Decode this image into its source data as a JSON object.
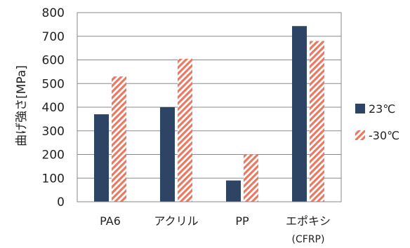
{
  "chart_data": {
    "type": "bar",
    "categories": [
      "PA6",
      "アクリル",
      "PP",
      "エポキシ"
    ],
    "category_sublabels": [
      "",
      "",
      "",
      "(CFRP)"
    ],
    "series": [
      {
        "name": "23℃",
        "values": [
          370,
          400,
          90,
          743
        ],
        "color": "#2d4464",
        "fill": "solid"
      },
      {
        "name": "-30℃",
        "values": [
          530,
          605,
          200,
          680
        ],
        "color": "#e87a63",
        "fill": "diagonal-hatch"
      }
    ],
    "ylabel": "曲げ強さ[MPa]",
    "xlabel": "",
    "ylim": [
      0,
      800
    ],
    "yticks": [
      0,
      100,
      200,
      300,
      400,
      500,
      600,
      700,
      800
    ],
    "grid": "y-major",
    "legend_position": "right"
  }
}
